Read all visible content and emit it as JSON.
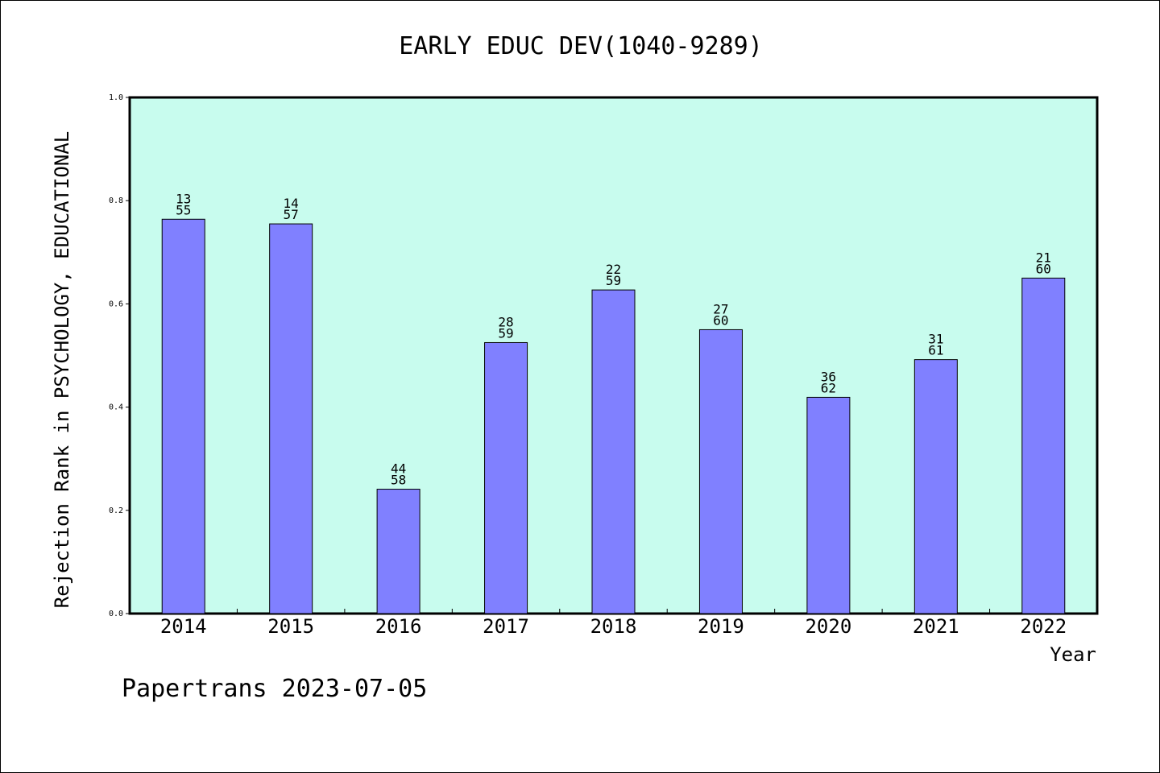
{
  "chart_data": {
    "type": "bar",
    "title": "EARLY EDUC DEV(1040-9289)",
    "xlabel": "Year",
    "ylabel": "Rejection Rank in PSYCHOLOGY, EDUCATIONAL",
    "categories": [
      "2014",
      "2015",
      "2016",
      "2017",
      "2018",
      "2019",
      "2020",
      "2021",
      "2022"
    ],
    "values": [
      0.764,
      0.755,
      0.241,
      0.525,
      0.627,
      0.55,
      0.419,
      0.492,
      0.65
    ],
    "rank": [
      "13",
      "14",
      "44",
      "28",
      "22",
      "27",
      "36",
      "31",
      "21"
    ],
    "total": [
      "55",
      "57",
      "58",
      "59",
      "59",
      "60",
      "62",
      "61",
      "60"
    ],
    "ylim": [
      0,
      1.0
    ],
    "yticks": [
      "0.0",
      "0.2",
      "0.4",
      "0.6",
      "0.8",
      "1.0"
    ],
    "grid": false,
    "colors": {
      "plot_background": "#c8fcee",
      "bar_fill": "#8080ff",
      "bar_stroke": "#000000"
    }
  },
  "footer": "Papertrans 2023-07-05"
}
